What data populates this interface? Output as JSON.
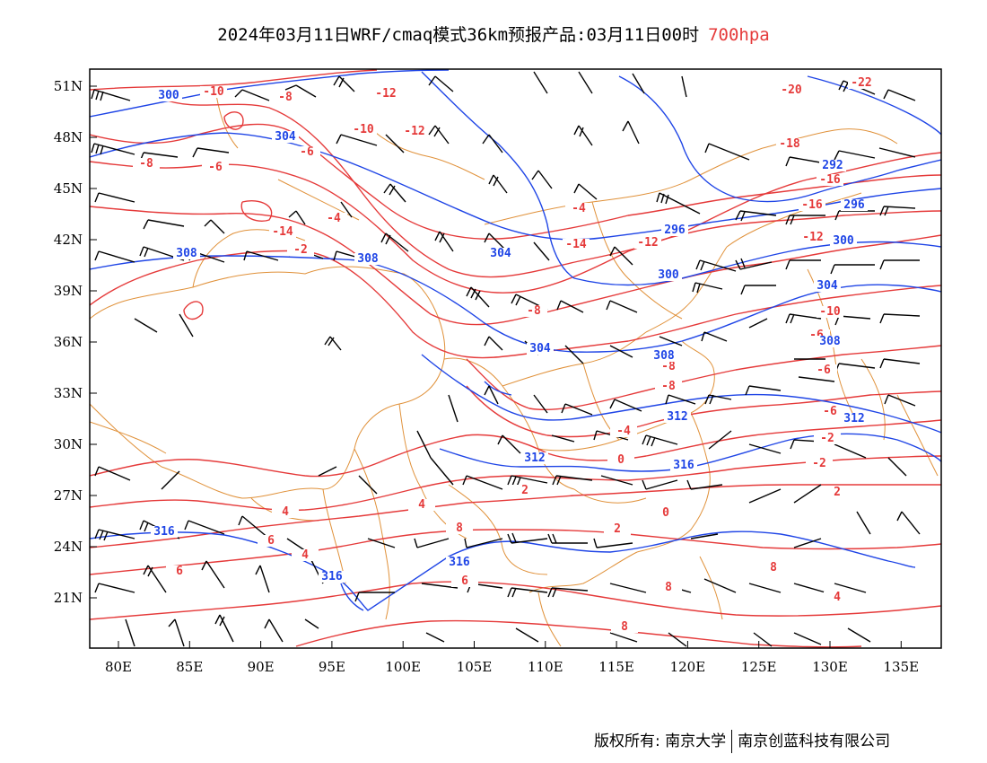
{
  "title": {
    "main": "2024年03月11日WRF/cmaq模式36km预报产品:03月11日00时",
    "level": "700hpa"
  },
  "colors": {
    "temperature": "#e53a3a",
    "geopotential": "#1f45e6",
    "boundary": "#e0913a",
    "wind": "#000000"
  },
  "axes": {
    "lat_labels": [
      "51N",
      "48N",
      "45N",
      "42N",
      "39N",
      "36N",
      "33N",
      "30N",
      "27N",
      "24N",
      "21N"
    ],
    "lon_labels": [
      "80E",
      "85E",
      "90E",
      "95E",
      "100E",
      "105E",
      "110E",
      "115E",
      "120E",
      "125E",
      "130E",
      "135E"
    ]
  },
  "map_labels": {
    "temperature": [
      "-10",
      "-8",
      "-12",
      "-22",
      "-20",
      "-10",
      "-12",
      "-6",
      "-8",
      "-6",
      "-18",
      "-16",
      "-4",
      "-14",
      "-16",
      "-4",
      "-2",
      "-14",
      "-12",
      "-12",
      "-8",
      "-10",
      "-6",
      "-8",
      "-6",
      "-8",
      "-6",
      "-4",
      "-2",
      "2",
      "0",
      "-2",
      "0",
      "2",
      "2",
      "4",
      "4",
      "8",
      "6",
      "4",
      "6",
      "8",
      "6",
      "8",
      "4",
      "8"
    ],
    "geopotential": [
      "300",
      "304",
      "292",
      "296",
      "304",
      "296",
      "300",
      "308",
      "308",
      "300",
      "304",
      "308",
      "304",
      "308",
      "312",
      "312",
      "312",
      "316",
      "316",
      "316",
      "316"
    ]
  },
  "footer": {
    "copyright": "版权所有: 南京大学",
    "company": "南京创蓝科技有限公司"
  }
}
